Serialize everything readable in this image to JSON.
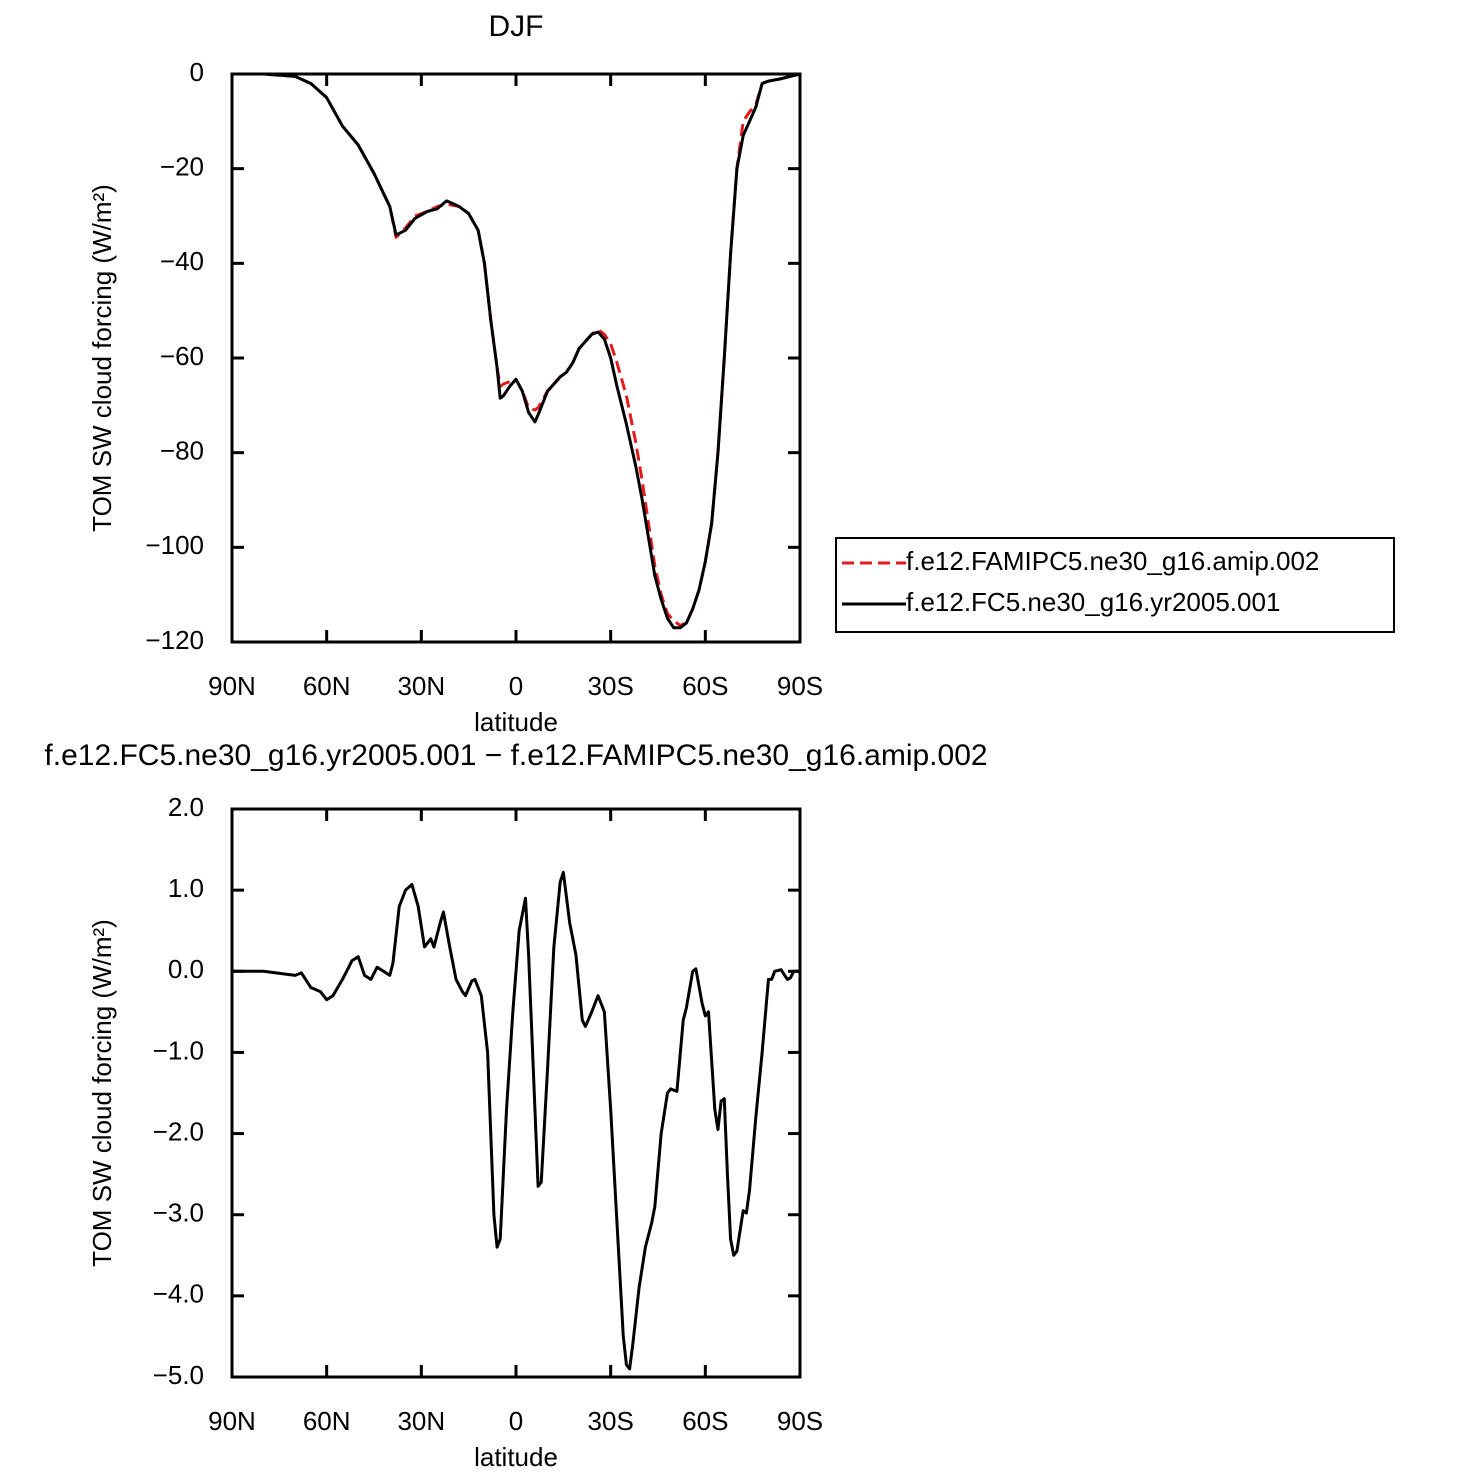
{
  "chart_data": [
    {
      "type": "line",
      "title": "DJF",
      "xlabel": "latitude",
      "ylabel": "TOM SW cloud forcing (W/m²)",
      "x": [
        90,
        80,
        70,
        65,
        60,
        55,
        50,
        45,
        40,
        38,
        35,
        32,
        28,
        25,
        22,
        18,
        15,
        12,
        10,
        8,
        6,
        5,
        4,
        2,
        0,
        -2,
        -4,
        -6,
        -7,
        -10,
        -14,
        -16,
        -18,
        -20,
        -24,
        -26,
        -28,
        -30,
        -32,
        -35,
        -38,
        -40,
        -42,
        -44,
        -46,
        -48,
        -50,
        -52,
        -54,
        -56,
        -58,
        -60,
        -62,
        -64,
        -66,
        -68,
        -70,
        -72,
        -74,
        -76,
        -78,
        -80,
        -84,
        -90
      ],
      "series": [
        {
          "name": "f.e12.FAMIPC5.ne30_g16.amip.002",
          "color": "#e41a1c",
          "line_style": "dashed",
          "values": [
            0,
            0,
            -0.5,
            -2,
            -5,
            -11,
            -15,
            -21,
            -28,
            -34.5,
            -32.5,
            -30,
            -29,
            -28,
            -27.5,
            -28,
            -29.5,
            -33,
            -40,
            -52,
            -62,
            -66,
            -65.5,
            -65,
            -64.5,
            -67,
            -70.5,
            -71,
            -70.5,
            -67,
            -64,
            -63,
            -61,
            -58,
            -55,
            -54,
            -55,
            -57,
            -61,
            -68,
            -78,
            -86,
            -95,
            -104,
            -110,
            -114,
            -115.5,
            -116.5,
            -116,
            -113,
            -109,
            -103,
            -95,
            -80,
            -60,
            -38,
            -20,
            -10,
            -8,
            -6.5,
            -2,
            -1.5,
            -1,
            0
          ]
        },
        {
          "name": "f.e12.FC5.ne30_g16.yr2005.001",
          "color": "#000000",
          "line_style": "solid",
          "values": [
            0,
            0,
            -0.5,
            -2,
            -5,
            -11,
            -15,
            -21,
            -28,
            -34,
            -33,
            -30.5,
            -29,
            -28.5,
            -26.8,
            -28,
            -29.5,
            -33,
            -40,
            -52,
            -62,
            -68.5,
            -68,
            -66,
            -64.5,
            -67,
            -71.5,
            -73.5,
            -72,
            -67,
            -64,
            -63,
            -61,
            -58,
            -55,
            -54.5,
            -56,
            -60,
            -66,
            -74,
            -83,
            -90,
            -98,
            -106,
            -111,
            -115,
            -117,
            -117,
            -116,
            -113,
            -109,
            -103,
            -95,
            -80,
            -60,
            -38,
            -20,
            -13,
            -10,
            -7,
            -2,
            -1.5,
            -1,
            0
          ]
        }
      ],
      "xlim": [
        90,
        -90
      ],
      "xticks": [
        {
          "value": 90,
          "label": "90N"
        },
        {
          "value": 60,
          "label": "60N"
        },
        {
          "value": 30,
          "label": "30N"
        },
        0,
        {
          "value": -30,
          "label": "30S"
        },
        {
          "value": -60,
          "label": "60S"
        },
        {
          "value": -90,
          "label": "90S"
        }
      ],
      "ylim": [
        -120,
        0
      ],
      "yticks": [
        0,
        {
          "value": -20,
          "label": "−20"
        },
        {
          "value": -40,
          "label": "−40"
        },
        {
          "value": -60,
          "label": "−60"
        },
        {
          "value": -80,
          "label": "−80"
        },
        {
          "value": -100,
          "label": "−100"
        },
        {
          "value": -120,
          "label": "−120"
        }
      ],
      "legend": "right"
    },
    {
      "type": "line",
      "title": "f.e12.FC5.ne30_g16.yr2005.001 − f.e12.FAMIPC5.ne30_g16.amip.002",
      "xlabel": "latitude",
      "ylabel": "TOM SW cloud forcing (W/m²)",
      "x": [
        90,
        80,
        70,
        68,
        65,
        62,
        60,
        58,
        55,
        53,
        52,
        50,
        48,
        46,
        44,
        42,
        40,
        39,
        37,
        35,
        33,
        31,
        29,
        27,
        26,
        24,
        23,
        21,
        19,
        17,
        16,
        14,
        13,
        11,
        9,
        7,
        6,
        5,
        3,
        1,
        -1,
        -3,
        -4,
        -6,
        -7,
        -8,
        -10,
        -12,
        -14,
        -15,
        -17,
        -19,
        -21,
        -22,
        -24,
        -26,
        -28,
        -30,
        -32,
        -34,
        -35,
        -36,
        -37,
        -39,
        -41,
        -43,
        -44,
        -46,
        -48,
        -49,
        -51,
        -53,
        -54,
        -56,
        -57,
        -59,
        -60,
        -61,
        -62,
        -63,
        -64,
        -65,
        -66,
        -67,
        -68,
        -69,
        -70,
        -71,
        -72,
        -73,
        -74,
        -76,
        -78,
        -80,
        -81,
        -82,
        -84,
        -86,
        -87,
        -88,
        -90
      ],
      "series": [
        {
          "color": "#000000",
          "line_style": "solid",
          "values": [
            0,
            0,
            -0.05,
            -0.02,
            -0.2,
            -0.25,
            -0.35,
            -0.3,
            -0.1,
            0.05,
            0.13,
            0.18,
            -0.05,
            -0.1,
            0.05,
            0,
            -0.05,
            0.1,
            0.8,
            1.0,
            1.07,
            0.8,
            0.3,
            0.4,
            0.3,
            0.6,
            0.73,
            0.3,
            -0.1,
            -0.25,
            -0.3,
            -0.12,
            -0.1,
            -0.3,
            -1.0,
            -3.0,
            -3.4,
            -3.3,
            -1.7,
            -0.5,
            0.5,
            0.9,
            0.2,
            -1.7,
            -2.65,
            -2.6,
            -1.2,
            0.3,
            1.1,
            1.22,
            0.6,
            0.2,
            -0.6,
            -0.68,
            -0.5,
            -0.3,
            -0.5,
            -1.7,
            -3.1,
            -4.5,
            -4.85,
            -4.9,
            -4.6,
            -3.9,
            -3.4,
            -3.1,
            -2.9,
            -2.0,
            -1.5,
            -1.45,
            -1.48,
            -0.6,
            -0.45,
            0,
            0.03,
            -0.4,
            -0.55,
            -0.5,
            -1.1,
            -1.7,
            -1.95,
            -1.6,
            -1.57,
            -2.5,
            -3.3,
            -3.5,
            -3.45,
            -3.2,
            -2.95,
            -2.98,
            -2.7,
            -1.8,
            -1.0,
            -0.1,
            -0.1,
            0,
            0.02,
            -0.1,
            -0.08,
            0,
            0
          ]
        }
      ],
      "xlim": [
        90,
        -90
      ],
      "xticks": [
        {
          "value": 90,
          "label": "90N"
        },
        {
          "value": 60,
          "label": "60N"
        },
        {
          "value": 30,
          "label": "30N"
        },
        0,
        {
          "value": -30,
          "label": "30S"
        },
        {
          "value": -60,
          "label": "60S"
        },
        {
          "value": -90,
          "label": "90S"
        }
      ],
      "ylim": [
        -5,
        2
      ],
      "yticks": [
        {
          "value": 2,
          "label": "2.0"
        },
        {
          "value": 1,
          "label": "1.0"
        },
        {
          "value": 0,
          "label": "0.0"
        },
        {
          "value": -1,
          "label": "−1.0"
        },
        {
          "value": -2,
          "label": "−2.0"
        },
        {
          "value": -3,
          "label": "−3.0"
        },
        {
          "value": -4,
          "label": "−4.0"
        },
        {
          "value": -5,
          "label": "−5.0"
        }
      ]
    }
  ]
}
